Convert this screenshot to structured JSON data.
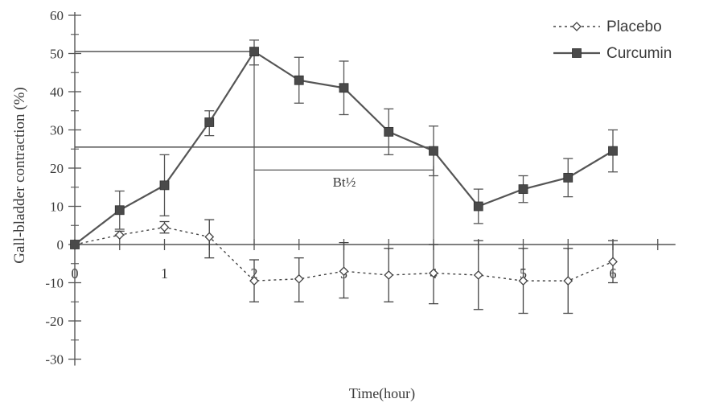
{
  "chart_data": {
    "type": "line",
    "xlabel": "Time(hour)",
    "ylabel": "Gall-bladder contraction (%)",
    "xlim": [
      0,
      6.5
    ],
    "ylim": [
      -30,
      60
    ],
    "yticks": [
      -30,
      -20,
      -10,
      0,
      10,
      20,
      30,
      40,
      50,
      60
    ],
    "ytick_labels": [
      "-30",
      "-20",
      "-10",
      "0",
      "10",
      "20",
      "30",
      "40",
      "50",
      "60"
    ],
    "xticks": [
      0,
      0.5,
      1,
      1.5,
      2,
      2.5,
      3,
      3.5,
      4,
      4.5,
      5,
      5.5,
      6,
      6.5
    ],
    "xtick_labels": [
      {
        "x": 0,
        "label": "0"
      },
      {
        "x": 1,
        "label": "1"
      },
      {
        "x": 2,
        "label": "2"
      },
      {
        "x": 3,
        "label": "3"
      },
      {
        "x": 4,
        "label": "4"
      },
      {
        "x": 5,
        "label": "5"
      },
      {
        "x": 6,
        "label": "6"
      }
    ],
    "legend_position": "top-right",
    "grid": false,
    "series": [
      {
        "name": "Placebo",
        "marker": "open-diamond",
        "line": "dotted",
        "color": "#444444",
        "x": [
          0,
          0.5,
          1,
          1.5,
          2,
          2.5,
          3,
          3.5,
          4,
          4.5,
          5,
          5.5,
          6
        ],
        "y": [
          0,
          2.5,
          4.5,
          2,
          -9.5,
          -9,
          -7,
          -8,
          -7.5,
          -8,
          -9.5,
          -9.5,
          -4.5
        ],
        "err_low": [
          0,
          0,
          1.5,
          5.5,
          5.5,
          6,
          7,
          7,
          8,
          9,
          8.5,
          8.5,
          5.5
        ],
        "err_high": [
          0,
          1,
          1.5,
          4.5,
          5.5,
          5.5,
          7.5,
          7,
          7.5,
          9,
          8.5,
          8.5,
          5.5
        ]
      },
      {
        "name": "Curcumin",
        "marker": "filled-square",
        "line": "solid",
        "color": "#555555",
        "x": [
          0,
          0.5,
          1,
          1.5,
          2,
          2.5,
          3,
          3.5,
          4,
          4.5,
          5,
          5.5,
          6
        ],
        "y": [
          0,
          9,
          15.5,
          32,
          50.5,
          43,
          41,
          29.5,
          24.5,
          10,
          14.5,
          17.5,
          24.5
        ],
        "err_low": [
          0,
          5,
          8,
          3.5,
          3.5,
          6,
          7,
          6,
          6.5,
          4.5,
          3.5,
          5,
          5.5
        ],
        "err_high": [
          0,
          5,
          8,
          3,
          3,
          6,
          7,
          6,
          6.5,
          4.5,
          3.5,
          5,
          5.5
        ]
      }
    ],
    "annotations": [
      {
        "text": "Bt½",
        "type": "label"
      },
      {
        "type": "hline",
        "y": 50.5,
        "x_from": 0,
        "x_to": 2
      },
      {
        "type": "hline",
        "y": 25.5,
        "x_from": 0,
        "x_to": 4
      },
      {
        "type": "vline",
        "x": 2,
        "y_from": 0,
        "y_to": 50.5
      },
      {
        "type": "vline",
        "x": 4,
        "y_from": 0,
        "y_to": 25.5
      },
      {
        "type": "bracket",
        "y": 19.5,
        "x_from": 2,
        "x_to": 4
      }
    ]
  }
}
